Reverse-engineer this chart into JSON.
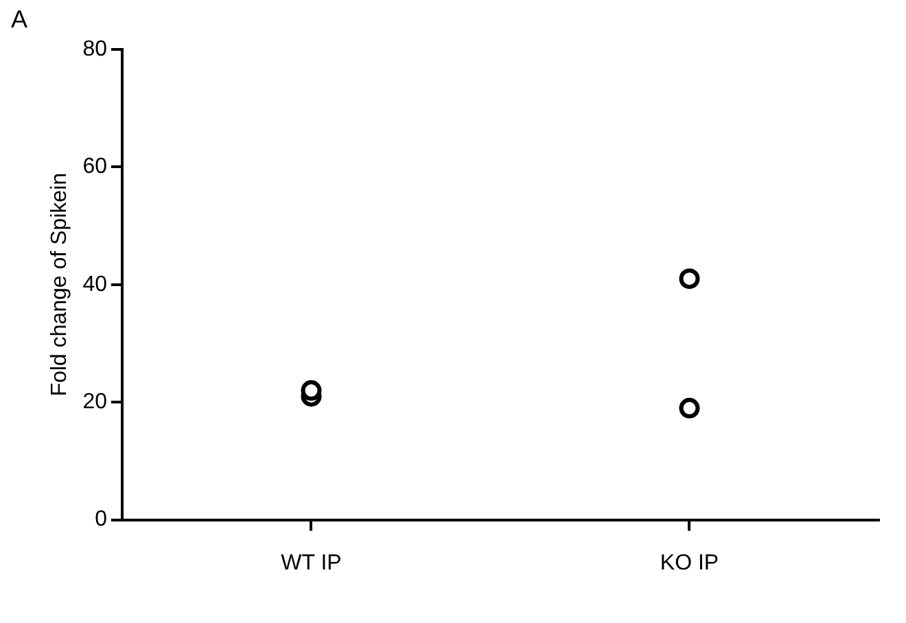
{
  "chart_data": {
    "type": "scatter",
    "ylabel": "Fold change of Spikein",
    "annotations": [
      "A"
    ],
    "categories": [
      "WT IP",
      "KO IP"
    ],
    "series": [
      {
        "color": "#000000",
        "x": [
          "WT IP",
          "WT IP",
          "KO IP",
          "KO IP"
        ],
        "values": [
          21,
          22,
          41,
          19
        ]
      }
    ],
    "ylim": [
      0,
      80
    ],
    "yticks": [
      0,
      20,
      40,
      60,
      80
    ],
    "grid": false,
    "legend": false,
    "marker": "circle"
  }
}
